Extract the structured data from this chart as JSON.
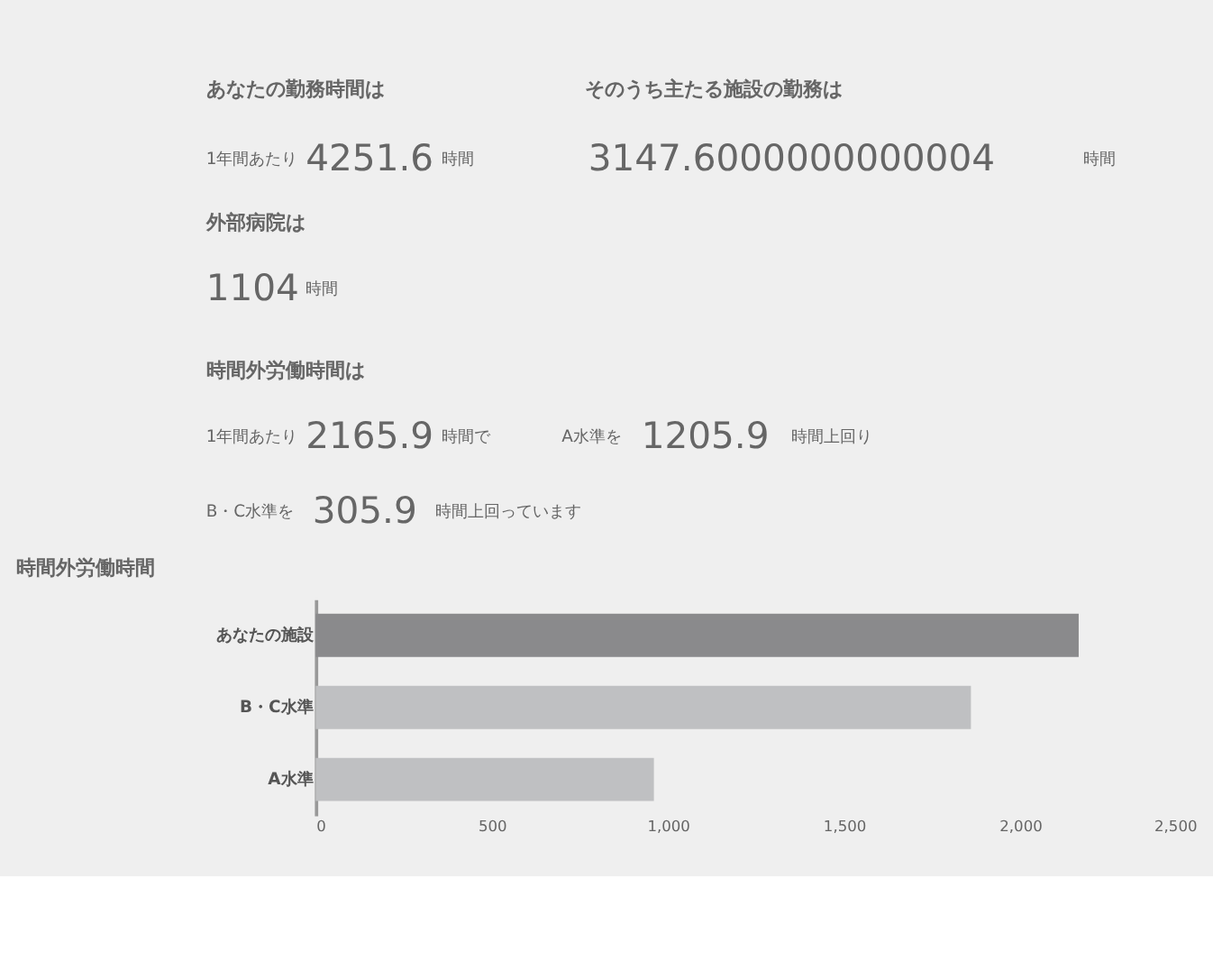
{
  "chart_data": {
    "type": "bar",
    "orientation": "horizontal",
    "title": "時間外労働時間",
    "annotations": [
      "あなたの勤務時間は",
      "そのうち主たる施設の勤務は",
      "1年間あたり",
      "4251.6",
      "時間",
      "3147.6000000000004",
      "時間",
      "外部病院は",
      "1104",
      "時間",
      "時間外労働時間は",
      "1年間あたり",
      "2165.9",
      "時間で",
      "A水準を",
      "1205.9",
      "時間上回り",
      "B・C水準を",
      "305.9",
      "時間上回っています"
    ],
    "categories": [
      "あなたの施設",
      "B・C水準",
      "A水準"
    ],
    "values": [
      2165.9,
      1860,
      960
    ],
    "colors": [
      "#8a8a8c",
      "#bfc0c2",
      "#bfc0c2"
    ],
    "xlim": [
      0,
      2500
    ],
    "xticks": [
      0,
      500,
      {
        "value": 1000,
        "label": "1,000"
      },
      {
        "value": 1500,
        "label": "1,500"
      },
      {
        "value": 2000,
        "label": "2,000"
      },
      {
        "value": 2500,
        "label": "2,500"
      }
    ],
    "grid": false
  }
}
